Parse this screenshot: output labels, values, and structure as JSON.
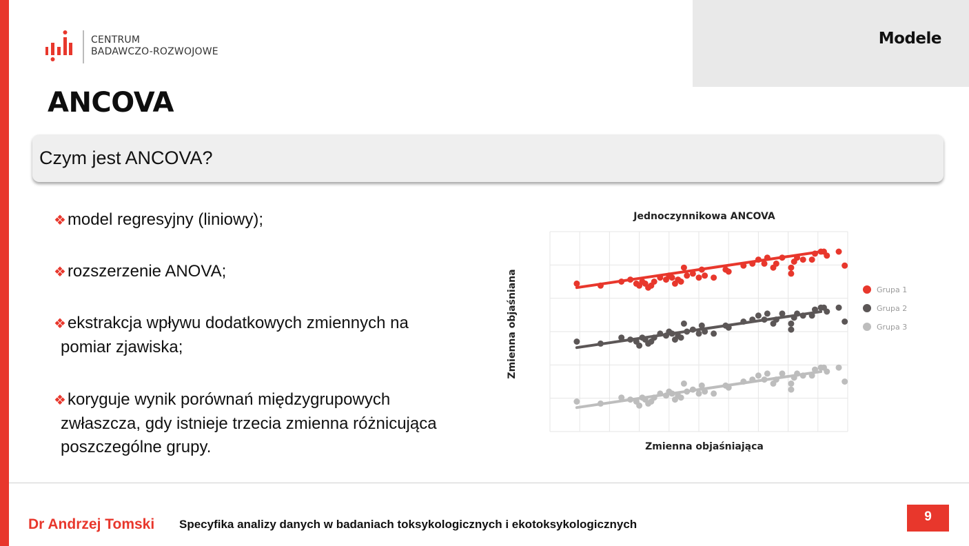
{
  "header": {
    "logo_line1": "CENTRUM",
    "logo_line2": "BADAWCZO-ROZWOJOWE",
    "section": "Modele"
  },
  "title": "ANCOVA",
  "question": "Czym jest ANCOVA?",
  "bullets": [
    {
      "line1": "model regresyjny (liniowy);"
    },
    {
      "line1": "rozszerzenie ANOVA;"
    },
    {
      "line1": "ekstrakcja wpływu dodatkowych zmiennych na",
      "line2": "pomiar zjawiska;"
    },
    {
      "line1": "koryguje wynik porównań międzygrupowych",
      "line2": "zwłaszcza, gdy istnieje trzecia  zmienna różnicująca",
      "line3": "poszczególne grupy."
    }
  ],
  "footer": {
    "author": "Dr Andrzej Tomski",
    "course": "Specyfika analizy danych w badaniach toksykologicznych i  ekotoksykologicznych",
    "page": "9"
  },
  "colors": {
    "accent": "#e8372c",
    "group1": "#e8372c",
    "group2": "#5b5656",
    "group3": "#bdbdbd"
  },
  "chart_data": {
    "type": "scatter",
    "title": "Jednoczynnikowa ANCOVA",
    "xlabel": "Zmienna objaśniająca",
    "ylabel": "Zmienna objaśniana",
    "xlim": [
      0,
      100
    ],
    "ylim": [
      0,
      100
    ],
    "grid": true,
    "tick_labels": false,
    "legend_position": "right",
    "series": [
      {
        "name": "Grupa 1",
        "color": "#e8372c",
        "trend": [
          [
            9,
            72
          ],
          [
            91,
            90
          ]
        ],
        "points": [
          [
            9,
            74
          ],
          [
            17,
            73
          ],
          [
            24,
            75
          ],
          [
            27,
            76
          ],
          [
            29,
            74
          ],
          [
            30,
            73
          ],
          [
            31,
            75
          ],
          [
            32,
            74
          ],
          [
            33,
            72
          ],
          [
            34,
            73
          ],
          [
            35,
            75
          ],
          [
            37,
            77
          ],
          [
            39,
            76
          ],
          [
            40,
            78
          ],
          [
            41,
            77
          ],
          [
            42,
            74
          ],
          [
            43,
            76
          ],
          [
            44,
            75
          ],
          [
            45,
            82
          ],
          [
            46,
            78
          ],
          [
            48,
            79
          ],
          [
            50,
            77
          ],
          [
            51,
            81
          ],
          [
            52,
            78
          ],
          [
            55,
            77
          ],
          [
            59,
            81
          ],
          [
            60,
            80
          ],
          [
            65,
            83
          ],
          [
            68,
            84
          ],
          [
            70,
            86
          ],
          [
            72,
            84
          ],
          [
            73,
            87
          ],
          [
            75,
            82
          ],
          [
            76,
            84
          ],
          [
            78,
            87
          ],
          [
            81,
            79
          ],
          [
            81,
            82
          ],
          [
            82,
            85
          ],
          [
            83,
            87
          ],
          [
            85,
            86
          ],
          [
            88,
            86
          ],
          [
            89,
            89
          ],
          [
            91,
            90
          ],
          [
            92,
            90
          ],
          [
            93,
            88
          ],
          [
            97,
            90
          ],
          [
            99,
            83
          ]
        ]
      },
      {
        "name": "Grupa 2",
        "color": "#5b5656",
        "trend": [
          [
            9,
            42
          ],
          [
            91,
            60
          ]
        ],
        "points": [
          [
            9,
            45
          ],
          [
            17,
            44
          ],
          [
            24,
            47
          ],
          [
            27,
            46
          ],
          [
            29,
            45
          ],
          [
            30,
            43
          ],
          [
            31,
            47
          ],
          [
            32,
            46
          ],
          [
            33,
            44
          ],
          [
            34,
            45
          ],
          [
            35,
            47
          ],
          [
            37,
            49
          ],
          [
            39,
            48
          ],
          [
            40,
            50
          ],
          [
            41,
            49
          ],
          [
            42,
            46
          ],
          [
            43,
            48
          ],
          [
            44,
            47
          ],
          [
            45,
            54
          ],
          [
            46,
            50
          ],
          [
            48,
            51
          ],
          [
            50,
            49
          ],
          [
            51,
            53
          ],
          [
            52,
            50
          ],
          [
            55,
            49
          ],
          [
            59,
            53
          ],
          [
            60,
            52
          ],
          [
            65,
            55
          ],
          [
            68,
            56
          ],
          [
            70,
            58
          ],
          [
            72,
            56
          ],
          [
            73,
            59
          ],
          [
            75,
            54
          ],
          [
            76,
            56
          ],
          [
            78,
            59
          ],
          [
            81,
            51
          ],
          [
            81,
            54
          ],
          [
            82,
            57
          ],
          [
            83,
            59
          ],
          [
            85,
            58
          ],
          [
            88,
            58
          ],
          [
            89,
            61
          ],
          [
            91,
            62
          ],
          [
            92,
            62
          ],
          [
            93,
            60
          ],
          [
            97,
            62
          ],
          [
            99,
            55
          ]
        ]
      },
      {
        "name": "Grupa 3",
        "color": "#bdbdbd",
        "trend": [
          [
            9,
            12
          ],
          [
            91,
            30
          ]
        ],
        "points": [
          [
            9,
            15
          ],
          [
            17,
            14
          ],
          [
            24,
            17
          ],
          [
            27,
            16
          ],
          [
            29,
            15
          ],
          [
            30,
            13
          ],
          [
            31,
            17
          ],
          [
            32,
            16
          ],
          [
            33,
            14
          ],
          [
            34,
            15
          ],
          [
            35,
            17
          ],
          [
            37,
            19
          ],
          [
            39,
            18
          ],
          [
            40,
            20
          ],
          [
            41,
            19
          ],
          [
            42,
            16
          ],
          [
            43,
            18
          ],
          [
            44,
            17
          ],
          [
            45,
            24
          ],
          [
            46,
            20
          ],
          [
            48,
            21
          ],
          [
            50,
            19
          ],
          [
            51,
            23
          ],
          [
            52,
            20
          ],
          [
            55,
            19
          ],
          [
            59,
            23
          ],
          [
            60,
            22
          ],
          [
            65,
            25
          ],
          [
            68,
            26
          ],
          [
            70,
            28
          ],
          [
            72,
            26
          ],
          [
            73,
            29
          ],
          [
            75,
            24
          ],
          [
            76,
            26
          ],
          [
            78,
            29
          ],
          [
            81,
            21
          ],
          [
            81,
            24
          ],
          [
            82,
            27
          ],
          [
            83,
            29
          ],
          [
            85,
            28
          ],
          [
            88,
            28
          ],
          [
            89,
            31
          ],
          [
            91,
            32
          ],
          [
            92,
            32
          ],
          [
            93,
            30
          ],
          [
            97,
            32
          ],
          [
            99,
            25
          ]
        ]
      }
    ]
  }
}
